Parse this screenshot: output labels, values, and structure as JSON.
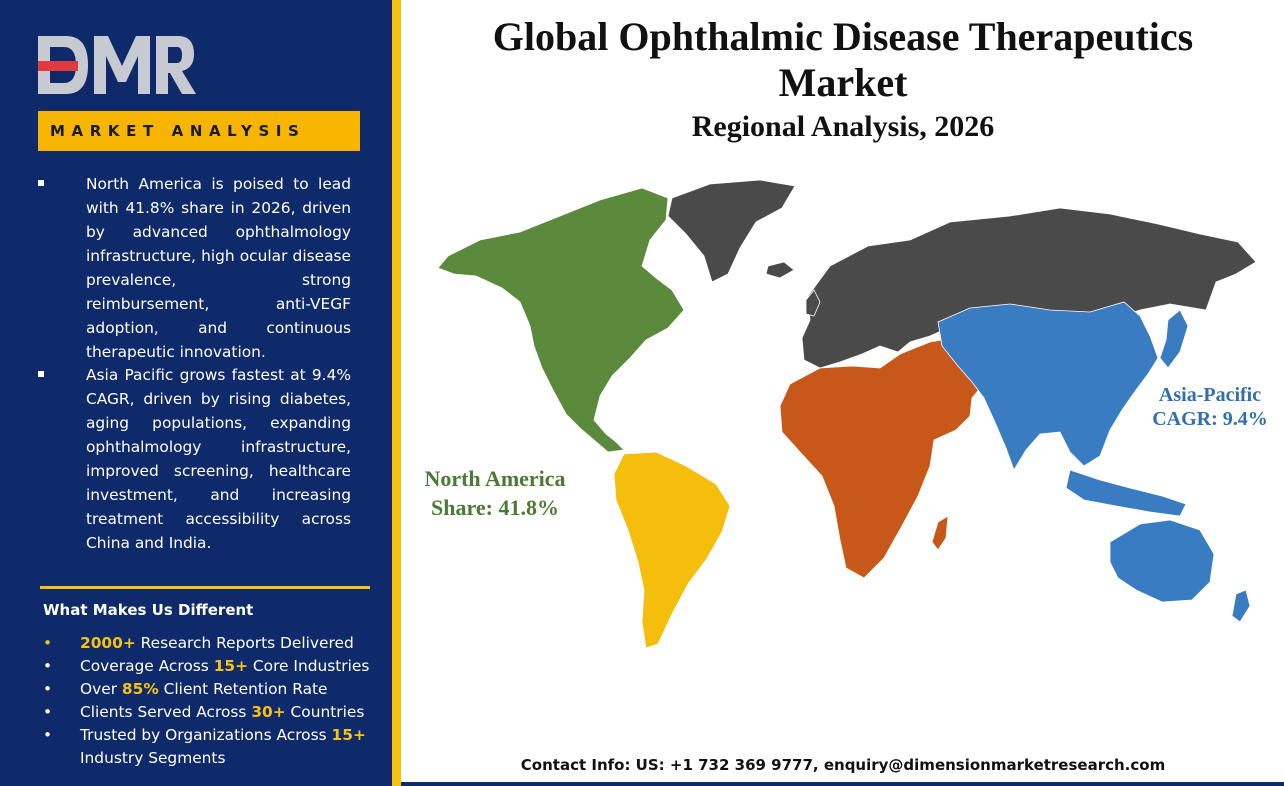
{
  "brand": {
    "logo_text": "DMR",
    "banner": "MARKET ANALYSIS"
  },
  "left": {
    "bullets": [
      "North America is poised to lead with 41.8% share in 2026, driven by advanced ophthalmology infrastructure, high ocular disease prevalence, strong reimbursement, anti-VEGF adoption, and continuous therapeutic innovation.",
      "Asia Pacific grows fastest at 9.4% CAGR, driven by rising diabetes, aging populations, expanding ophthalmology infrastructure, improved screening, healthcare investment, and increasing treatment accessibility across China and India."
    ],
    "diff_heading": "What Makes Us Different",
    "diff_items": [
      {
        "highlight": "2000+",
        "before": "",
        "after": " Research Reports Delivered"
      },
      {
        "highlight": "15+",
        "before": "Coverage Across ",
        "after": " Core Industries"
      },
      {
        "highlight": "85%",
        "before": "Over ",
        "after": " Client Retention Rate"
      },
      {
        "highlight": "30+",
        "before": "Clients Served Across ",
        "after": " Countries"
      },
      {
        "highlight": "15+",
        "before": "Trusted by Organizations Across ",
        "after": " Industry Segments"
      }
    ]
  },
  "main": {
    "title_line1": "Global Ophthalmic Disease Therapeutics",
    "title_line2": "Market",
    "subtitle": "Regional Analysis, 2026",
    "regions": {
      "north_america": {
        "name": "North America",
        "metric": "Share: 41.8%",
        "color": "#5b8a3c"
      },
      "south_america": {
        "color": "#f5bd0c"
      },
      "africa_middle_east": {
        "color": "#c8581a"
      },
      "asia_pacific": {
        "name": "Asia-Pacific",
        "metric": "CAGR: 9.4%",
        "color": "#3a7cc2"
      },
      "europe_russia_greenland": {
        "color": "#4a4a4a"
      }
    },
    "contact": "Contact Info: US: +1 732 369 9777, enquiry@dimensionmarketresearch.com"
  },
  "colors": {
    "navy": "#0f2a6b",
    "gold": "#f7c210",
    "logo_red": "#e03a3e",
    "logo_grey": "#c7cbd1"
  }
}
